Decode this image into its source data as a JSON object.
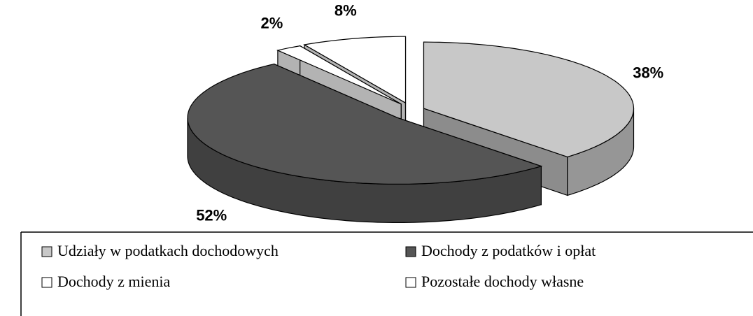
{
  "chart_data": {
    "type": "pie",
    "categories": [
      "Udziały w podatkach dochodowych",
      "Dochody z podatków i opłat",
      "Dochody z mienia",
      "Pozostałe dochody własne"
    ],
    "values": [
      38,
      52,
      2,
      8
    ],
    "value_labels": [
      "38%",
      "52%",
      "2%",
      "8%"
    ],
    "colors": [
      "#c8c8c8",
      "#555555",
      "#ffffff",
      "#ffffff"
    ],
    "legend": "bottom"
  }
}
